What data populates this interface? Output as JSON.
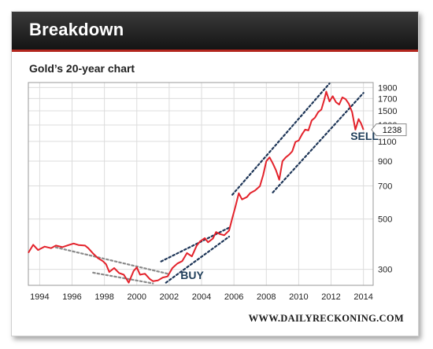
{
  "banner": {
    "title": "Breakdown"
  },
  "chart_data": {
    "type": "line",
    "title": "Gold’s 20-year chart",
    "xlabel": "",
    "ylabel": "",
    "xlim": [
      1993.3,
      2014.6
    ],
    "ylim": [
      255,
      2000
    ],
    "yscale": "log",
    "grid": true,
    "x_ticks": [
      "1994",
      "1996",
      "1998",
      "2000",
      "2002",
      "2004",
      "2006",
      "2008",
      "2010",
      "2012",
      "2014"
    ],
    "y_ticks": [
      "1900",
      "1700",
      "1500",
      "1300",
      "1100",
      "900",
      "700",
      "500",
      "300"
    ],
    "series": [
      {
        "name": "",
        "color": "#e3222b",
        "points": [
          [
            1993.3,
            355
          ],
          [
            1993.6,
            385
          ],
          [
            1993.9,
            365
          ],
          [
            1994.3,
            378
          ],
          [
            1994.7,
            372
          ],
          [
            1995.0,
            382
          ],
          [
            1995.4,
            376
          ],
          [
            1995.8,
            384
          ],
          [
            1996.1,
            390
          ],
          [
            1996.4,
            384
          ],
          [
            1996.8,
            382
          ],
          [
            1997.0,
            372
          ],
          [
            1997.3,
            352
          ],
          [
            1997.6,
            336
          ],
          [
            1997.9,
            326
          ],
          [
            1998.1,
            316
          ],
          [
            1998.3,
            292
          ],
          [
            1998.6,
            304
          ],
          [
            1998.9,
            289
          ],
          [
            1999.2,
            284
          ],
          [
            1999.5,
            262
          ],
          [
            1999.8,
            295
          ],
          [
            2000.0,
            306
          ],
          [
            2000.2,
            284
          ],
          [
            2000.5,
            287
          ],
          [
            2000.8,
            272
          ],
          [
            2001.0,
            266
          ],
          [
            2001.3,
            268
          ],
          [
            2001.6,
            276
          ],
          [
            2001.9,
            279
          ],
          [
            2002.2,
            304
          ],
          [
            2002.5,
            318
          ],
          [
            2002.8,
            326
          ],
          [
            2003.1,
            354
          ],
          [
            2003.4,
            342
          ],
          [
            2003.7,
            382
          ],
          [
            2003.9,
            398
          ],
          [
            2004.2,
            412
          ],
          [
            2004.4,
            395
          ],
          [
            2004.7,
            410
          ],
          [
            2004.9,
            438
          ],
          [
            2005.1,
            430
          ],
          [
            2005.4,
            424
          ],
          [
            2005.7,
            445
          ],
          [
            2005.9,
            505
          ],
          [
            2006.1,
            570
          ],
          [
            2006.3,
            650
          ],
          [
            2006.5,
            610
          ],
          [
            2006.8,
            625
          ],
          [
            2007.0,
            650
          ],
          [
            2007.3,
            668
          ],
          [
            2007.6,
            698
          ],
          [
            2007.8,
            780
          ],
          [
            2008.0,
            900
          ],
          [
            2008.2,
            935
          ],
          [
            2008.4,
            880
          ],
          [
            2008.6,
            820
          ],
          [
            2008.8,
            745
          ],
          [
            2009.0,
            900
          ],
          [
            2009.2,
            935
          ],
          [
            2009.4,
            960
          ],
          [
            2009.6,
            995
          ],
          [
            2009.8,
            1095
          ],
          [
            2010.0,
            1110
          ],
          [
            2010.2,
            1180
          ],
          [
            2010.4,
            1240
          ],
          [
            2010.6,
            1230
          ],
          [
            2010.8,
            1360
          ],
          [
            2011.0,
            1400
          ],
          [
            2011.2,
            1480
          ],
          [
            2011.4,
            1520
          ],
          [
            2011.6,
            1700
          ],
          [
            2011.7,
            1825
          ],
          [
            2011.9,
            1650
          ],
          [
            2012.1,
            1740
          ],
          [
            2012.3,
            1640
          ],
          [
            2012.5,
            1600
          ],
          [
            2012.7,
            1720
          ],
          [
            2012.9,
            1690
          ],
          [
            2013.1,
            1610
          ],
          [
            2013.3,
            1480
          ],
          [
            2013.5,
            1240
          ],
          [
            2013.7,
            1380
          ],
          [
            2013.85,
            1320
          ],
          [
            2014.0,
            1238
          ]
        ]
      }
    ],
    "trend_lines": [
      {
        "style": "gray-dotted",
        "from": [
          1995.0,
          375
        ],
        "to": [
          2001.9,
          287
        ]
      },
      {
        "style": "gray-dotted",
        "from": [
          1997.3,
          290
        ],
        "to": [
          2001.0,
          260
        ]
      },
      {
        "style": "navy-dotted",
        "from": [
          2001.5,
          325
        ],
        "to": [
          2005.7,
          458
        ]
      },
      {
        "style": "navy-dotted",
        "from": [
          2001.8,
          262
        ],
        "to": [
          2005.7,
          418
        ]
      },
      {
        "style": "navy-dotted",
        "from": [
          2005.9,
          640
        ],
        "to": [
          2011.9,
          1980
        ]
      },
      {
        "style": "navy-dotted",
        "from": [
          2008.4,
          655
        ],
        "to": [
          2014.0,
          1800
        ]
      }
    ],
    "last_value_label": "1238",
    "annotations": [
      {
        "text": "BUY",
        "x": 2002.7,
        "y": 272
      },
      {
        "text": "SELL",
        "x": 2013.2,
        "y": 1115
      }
    ],
    "colors": {
      "line": "#e3222b",
      "navy": "#1d3557",
      "gray": "#8a8a8a",
      "annotation": "#1f3e5a"
    }
  },
  "footer": {
    "source": "WWW.DAILYRECKONING.COM"
  }
}
